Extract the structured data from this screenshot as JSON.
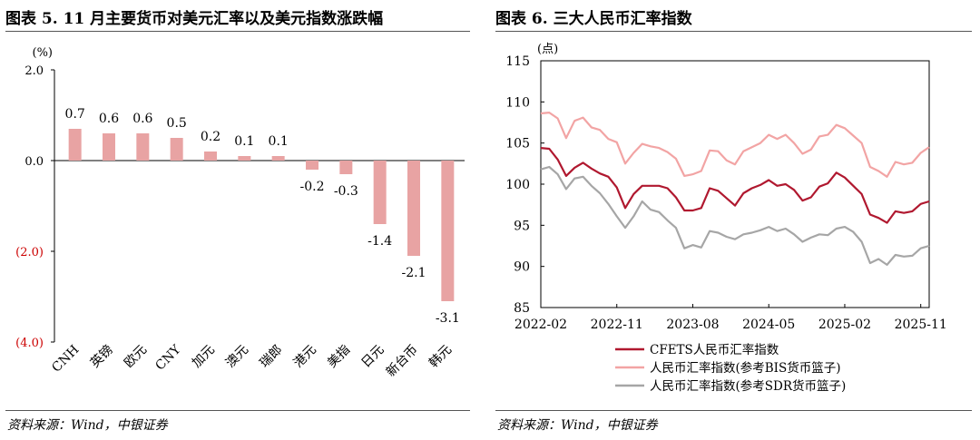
{
  "left_panel": {
    "title": "图表 5. 11 月主要货币对美元汇率以及美元指数涨跌幅",
    "source": "资料来源：Wind，中银证券"
  },
  "right_panel": {
    "title": "图表 6. 三大人民币汇率指数",
    "source": "资料来源：Wind，中银证券"
  },
  "chart_data": [
    {
      "type": "bar",
      "title": "11 月主要货币对美元汇率以及美元指数涨跌幅",
      "ylabel": "(%)",
      "ylim": [
        -4.0,
        2.0
      ],
      "yticks": [
        2.0,
        0.0,
        -2.0,
        -4.0
      ],
      "ytick_labels": [
        "2.0",
        "0.0",
        "(2.0)",
        "(4.0)"
      ],
      "bar_color": "#e8a3a3",
      "negative_tick_color": "#cc0000",
      "categories": [
        "CNH",
        "英镑",
        "欧元",
        "CNY",
        "加元",
        "澳元",
        "瑞郎",
        "港元",
        "美指",
        "日元",
        "新台币",
        "韩元"
      ],
      "values": [
        0.7,
        0.6,
        0.6,
        0.5,
        0.2,
        0.1,
        0.1,
        -0.2,
        -0.3,
        -1.4,
        -2.1,
        -3.1
      ],
      "data_labels": [
        "0.7",
        "0.6",
        "0.6",
        "0.5",
        "0.2",
        "0.1",
        "0.1",
        "-0.2",
        "-0.3",
        "-1.4",
        "-2.1",
        "-3.1"
      ]
    },
    {
      "type": "line",
      "title": "三大人民币汇率指数",
      "ylabel": "(点)",
      "ylim": [
        85,
        115
      ],
      "yticks": [
        85,
        90,
        95,
        100,
        105,
        110,
        115
      ],
      "x_tick_labels": [
        "2022-02",
        "2022-11",
        "2023-08",
        "2024-05",
        "2025-02",
        "2025-11"
      ],
      "x_tick_index": [
        0,
        9,
        18,
        27,
        36,
        45
      ],
      "legend_position": "bottom",
      "series": [
        {
          "name": "CFETS人民币汇率指数",
          "color": "#b0182f",
          "values": [
            104.4,
            104.3,
            103.0,
            101.0,
            102.0,
            102.6,
            101.9,
            101.3,
            100.9,
            99.6,
            97.1,
            98.8,
            99.8,
            99.8,
            99.8,
            99.5,
            98.4,
            96.8,
            96.8,
            97.1,
            99.5,
            99.2,
            98.3,
            97.4,
            98.9,
            99.5,
            99.9,
            100.5,
            99.8,
            100.0,
            99.3,
            98.0,
            98.4,
            99.7,
            100.1,
            101.4,
            100.8,
            99.8,
            98.8,
            96.3,
            95.9,
            95.3,
            96.7,
            96.5,
            96.7,
            97.6,
            97.9
          ]
        },
        {
          "name": "人民币汇率指数(参考BIS货币篮子)",
          "color": "#f2a4a4",
          "values": [
            108.6,
            108.7,
            108.0,
            105.6,
            107.7,
            108.1,
            106.9,
            106.6,
            105.5,
            105.1,
            102.5,
            103.8,
            104.9,
            104.6,
            104.4,
            103.9,
            103.1,
            101.0,
            101.2,
            101.6,
            104.1,
            104.0,
            102.9,
            102.4,
            104.0,
            104.5,
            105.0,
            106.0,
            105.5,
            106.0,
            105.0,
            103.7,
            104.2,
            105.8,
            106.0,
            107.2,
            106.8,
            105.9,
            105.0,
            102.1,
            101.6,
            100.9,
            102.7,
            102.4,
            102.6,
            103.8,
            104.5
          ]
        },
        {
          "name": "人民币汇率指数(参考SDR货币篮子)",
          "color": "#a6a6a6",
          "values": [
            101.8,
            102.1,
            101.2,
            99.4,
            100.7,
            100.9,
            99.8,
            98.9,
            97.6,
            96.1,
            94.7,
            96.1,
            97.9,
            96.9,
            96.6,
            95.6,
            94.7,
            92.2,
            92.6,
            92.3,
            94.3,
            94.1,
            93.6,
            93.3,
            93.9,
            94.1,
            94.4,
            94.8,
            94.3,
            94.6,
            93.9,
            93.0,
            93.5,
            93.9,
            93.8,
            94.6,
            94.8,
            94.2,
            93.0,
            90.4,
            90.9,
            90.2,
            91.4,
            91.2,
            91.3,
            92.2,
            92.5
          ]
        }
      ]
    }
  ]
}
